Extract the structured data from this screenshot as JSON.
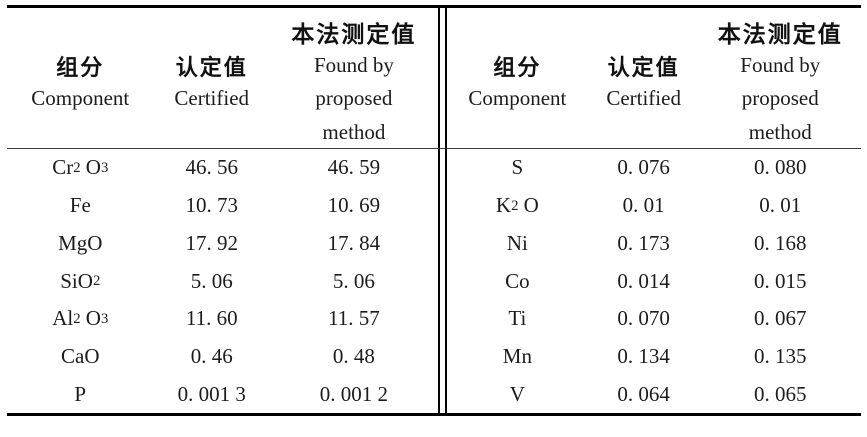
{
  "header": {
    "component_cn": "组分",
    "component_en": "Component",
    "certified_cn": "认定值",
    "certified_en": "Certified",
    "found_cn": "本法测定值",
    "found_en_lines": [
      "Found by",
      "proposed",
      "method"
    ]
  },
  "left_table": {
    "rows": [
      {
        "component": "Cr_2 O_3",
        "certified": "46. 56",
        "found": "46. 59"
      },
      {
        "component": "Fe",
        "certified": "10. 73",
        "found": "10. 69"
      },
      {
        "component": "MgO",
        "certified": "17. 92",
        "found": "17. 84"
      },
      {
        "component": "SiO_2",
        "certified": "5. 06",
        "found": "5. 06"
      },
      {
        "component": "Al_2 O_3",
        "certified": "11. 60",
        "found": "11. 57"
      },
      {
        "component": "CaO",
        "certified": "0. 46",
        "found": "0. 48"
      },
      {
        "component": "P",
        "certified": "0. 001 3",
        "found": "0. 001 2"
      }
    ]
  },
  "right_table": {
    "rows": [
      {
        "component": "S",
        "certified": "0. 076",
        "found": "0. 080"
      },
      {
        "component": "K_2 O",
        "certified": "0. 01",
        "found": "0. 01"
      },
      {
        "component": "Ni",
        "certified": "0. 173",
        "found": "0. 168"
      },
      {
        "component": "Co",
        "certified": "0. 014",
        "found": "0. 015"
      },
      {
        "component": "Ti",
        "certified": "0. 070",
        "found": "0. 067"
      },
      {
        "component": "Mn",
        "certified": "0. 134",
        "found": "0. 135"
      },
      {
        "component": "V",
        "certified": "0. 064",
        "found": "0. 065"
      }
    ]
  },
  "colors": {
    "rule": "#000000",
    "thin_rule": "#3a3a3a",
    "text": "#1c1c1c",
    "background": "#ffffff"
  }
}
